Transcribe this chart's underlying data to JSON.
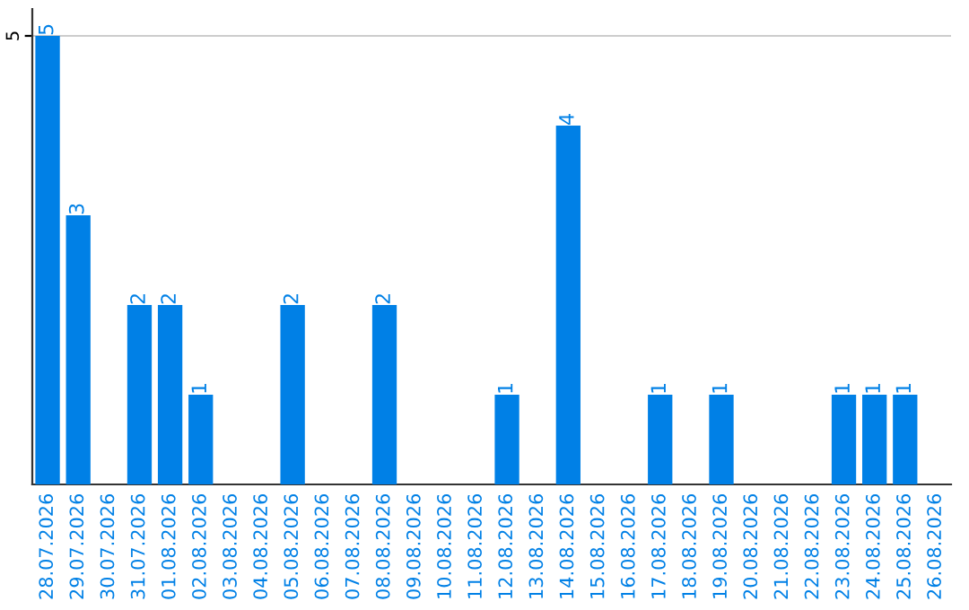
{
  "chart_data": {
    "type": "bar",
    "categories": [
      "28.07.2026",
      "29.07.2026",
      "30.07.2026",
      "31.07.2026",
      "01.08.2026",
      "02.08.2026",
      "03.08.2026",
      "04.08.2026",
      "05.08.2026",
      "06.08.2026",
      "07.08.2026",
      "08.08.2026",
      "09.08.2026",
      "10.08.2026",
      "11.08.2026",
      "12.08.2026",
      "13.08.2026",
      "14.08.2026",
      "15.08.2026",
      "16.08.2026",
      "17.08.2026",
      "18.08.2026",
      "19.08.2026",
      "20.08.2026",
      "21.08.2026",
      "22.08.2026",
      "23.08.2026",
      "24.08.2026",
      "25.08.2026",
      "26.08.2026"
    ],
    "values": [
      5,
      3,
      0,
      2,
      2,
      1,
      0,
      0,
      2,
      0,
      0,
      2,
      0,
      0,
      0,
      1,
      0,
      4,
      0,
      0,
      1,
      0,
      1,
      0,
      0,
      0,
      1,
      1,
      1,
      0
    ],
    "value_labels": [
      "5",
      "3",
      null,
      "2",
      "2",
      "1",
      null,
      null,
      "2",
      null,
      null,
      "2",
      null,
      null,
      null,
      "1",
      null,
      "4",
      null,
      null,
      "1",
      null,
      "1",
      null,
      null,
      null,
      "1",
      "1",
      "1",
      null
    ],
    "color": "#0080e6",
    "ylim": [
      0,
      5.3
    ],
    "yticks": [
      5
    ],
    "grid": "y",
    "legend": false
  }
}
